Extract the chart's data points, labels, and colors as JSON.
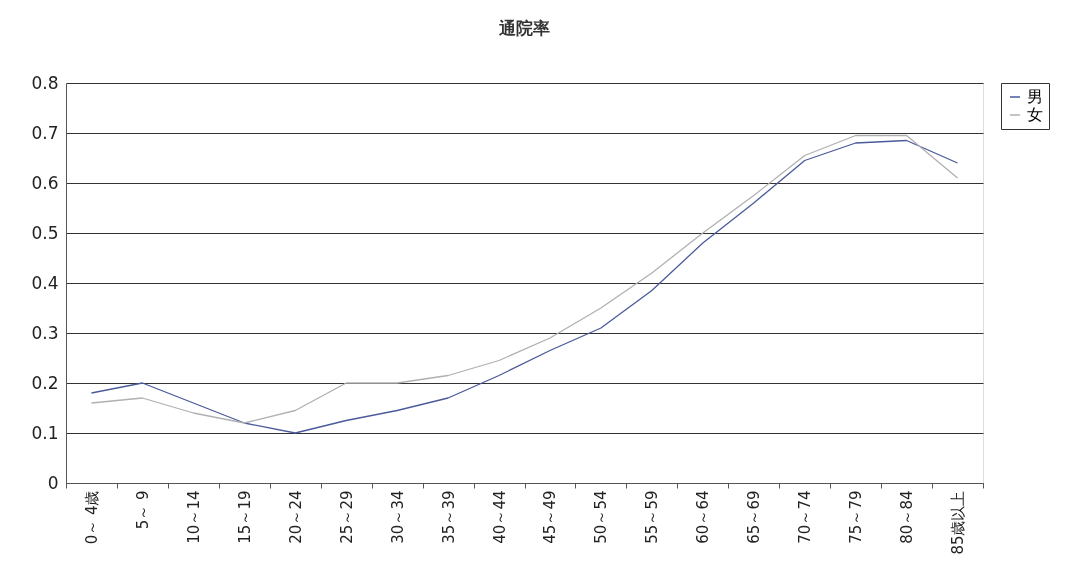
{
  "chart_data": {
    "type": "line",
    "title": "通院率",
    "categories": [
      "0～ 4歳",
      "5～ 9",
      "10～14",
      "15～19",
      "20～24",
      "25～29",
      "30～34",
      "35～39",
      "40～44",
      "45～49",
      "50～54",
      "55～59",
      "60～64",
      "65～69",
      "70～74",
      "75～79",
      "80～84",
      "85歳以上"
    ],
    "series": [
      {
        "name": "男",
        "color": "#4a5a9a",
        "values": [
          0.18,
          0.2,
          0.16,
          0.12,
          0.1,
          0.125,
          0.145,
          0.17,
          0.215,
          0.265,
          0.31,
          0.385,
          0.48,
          0.56,
          0.645,
          0.68,
          0.685,
          0.64
        ]
      },
      {
        "name": "女",
        "color": "#b0b0b0",
        "values": [
          0.16,
          0.17,
          0.14,
          0.12,
          0.145,
          0.2,
          0.2,
          0.215,
          0.245,
          0.29,
          0.35,
          0.42,
          0.5,
          0.575,
          0.655,
          0.695,
          0.695,
          0.61
        ]
      }
    ],
    "ylim": [
      0,
      0.8
    ],
    "yticks": [
      0,
      0.1,
      0.2,
      0.3,
      0.4,
      0.5,
      0.6,
      0.7,
      0.8
    ],
    "grid": "y",
    "legend": "right",
    "marker": "none",
    "line_style": "solid"
  }
}
